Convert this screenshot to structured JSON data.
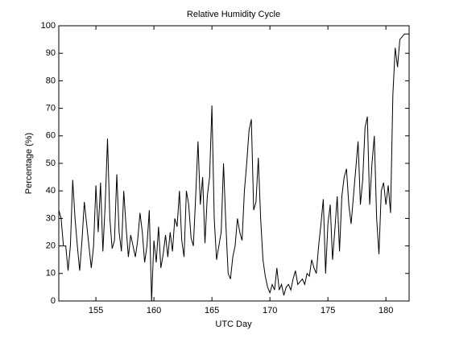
{
  "chart_data": {
    "type": "line",
    "title": "Relative Humidity Cycle",
    "x_label": "UTC Day",
    "y_label": "Percentage (%)",
    "color": "#000000",
    "grid": false,
    "xlim": [
      151.8,
      182
    ],
    "ylim": [
      0,
      100
    ],
    "xticks": [
      155,
      160,
      165,
      170,
      175,
      180
    ],
    "yticks": [
      0,
      10,
      20,
      30,
      40,
      50,
      60,
      70,
      80,
      90,
      100
    ],
    "x": [
      151.8,
      152.0,
      152.2,
      152.4,
      152.6,
      152.8,
      153.0,
      153.2,
      153.4,
      153.6,
      153.8,
      154.0,
      154.2,
      154.4,
      154.6,
      154.8,
      155.0,
      155.2,
      155.4,
      155.6,
      155.8,
      156.0,
      156.2,
      156.4,
      156.6,
      156.8,
      157.0,
      157.2,
      157.4,
      157.6,
      157.8,
      158.0,
      158.2,
      158.4,
      158.6,
      158.8,
      159.0,
      159.2,
      159.4,
      159.6,
      159.8,
      160.0,
      160.2,
      160.4,
      160.6,
      160.8,
      161.0,
      161.2,
      161.4,
      161.6,
      161.8,
      162.0,
      162.2,
      162.4,
      162.6,
      162.8,
      163.0,
      163.2,
      163.4,
      163.6,
      163.8,
      164.0,
      164.2,
      164.4,
      164.6,
      164.8,
      165.0,
      165.2,
      165.4,
      165.6,
      165.8,
      166.0,
      166.2,
      166.4,
      166.6,
      166.8,
      167.0,
      167.2,
      167.4,
      167.6,
      167.8,
      168.0,
      168.2,
      168.4,
      168.6,
      168.8,
      169.0,
      169.2,
      169.4,
      169.6,
      169.8,
      170.0,
      170.2,
      170.4,
      170.6,
      170.8,
      171.0,
      171.2,
      171.4,
      171.6,
      171.8,
      172.0,
      172.2,
      172.4,
      172.6,
      172.8,
      173.0,
      173.2,
      173.4,
      173.6,
      173.8,
      174.0,
      174.2,
      174.4,
      174.6,
      174.8,
      175.0,
      175.2,
      175.4,
      175.6,
      175.8,
      176.0,
      176.2,
      176.4,
      176.6,
      176.8,
      177.0,
      177.2,
      177.4,
      177.6,
      177.8,
      178.0,
      178.2,
      178.4,
      178.6,
      178.8,
      179.0,
      179.2,
      179.4,
      179.6,
      179.8,
      180.0,
      180.2,
      180.4,
      180.6,
      180.8,
      181.0,
      181.2,
      181.4,
      181.6,
      181.8,
      182.0
    ],
    "values": [
      33,
      30,
      20,
      20,
      11,
      20,
      44,
      30,
      20,
      11,
      22,
      36,
      28,
      20,
      12,
      20,
      42,
      25,
      43,
      18,
      35,
      59,
      30,
      19,
      22,
      46,
      25,
      18,
      40,
      27,
      16,
      24,
      20,
      16,
      22,
      32,
      25,
      14,
      20,
      33,
      0,
      22,
      14,
      27,
      12,
      17,
      24,
      16,
      25,
      18,
      30,
      27,
      40,
      22,
      16,
      40,
      35,
      23,
      20,
      38,
      58,
      35,
      45,
      21,
      38,
      45,
      71,
      30,
      15,
      20,
      25,
      50,
      28,
      10,
      8,
      16,
      20,
      30,
      25,
      22,
      40,
      50,
      62,
      66,
      33,
      36,
      52,
      30,
      15,
      9,
      5,
      3,
      6,
      4,
      12,
      4,
      6,
      2,
      5,
      6,
      4,
      8,
      11,
      6,
      7,
      8,
      6,
      10,
      9,
      15,
      12,
      10,
      20,
      28,
      37,
      10,
      28,
      35,
      15,
      26,
      38,
      18,
      38,
      45,
      48,
      35,
      28,
      38,
      48,
      58,
      35,
      44,
      63,
      67,
      35,
      50,
      60,
      30,
      17,
      40,
      43,
      35,
      42,
      32,
      75,
      92,
      85,
      95,
      96,
      97,
      97,
      97
    ]
  }
}
